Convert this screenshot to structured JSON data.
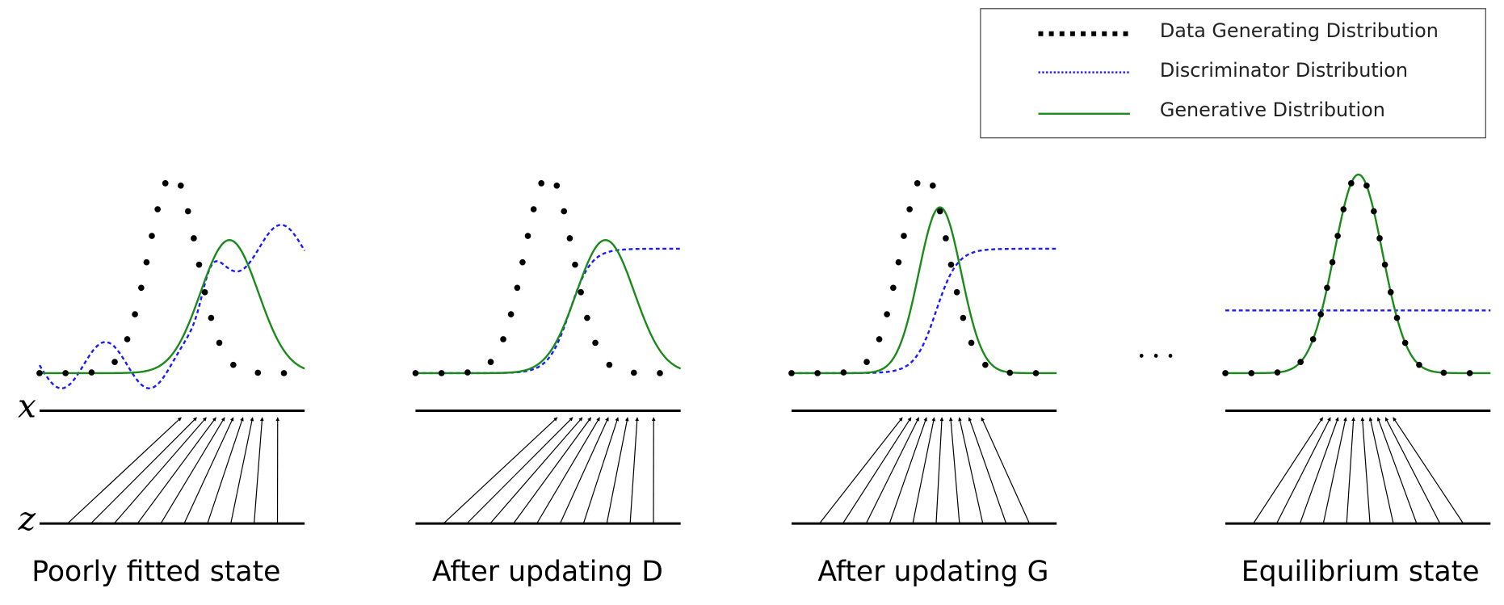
{
  "legend": [
    "Data Generating Distribution",
    "Discriminator Distribution",
    "Generative Distribution"
  ],
  "axes": {
    "x": "x",
    "z": "z"
  },
  "panels": [
    "Poorly fitted state",
    "After updating D",
    "After updating G",
    "Equilibrium state"
  ]
}
